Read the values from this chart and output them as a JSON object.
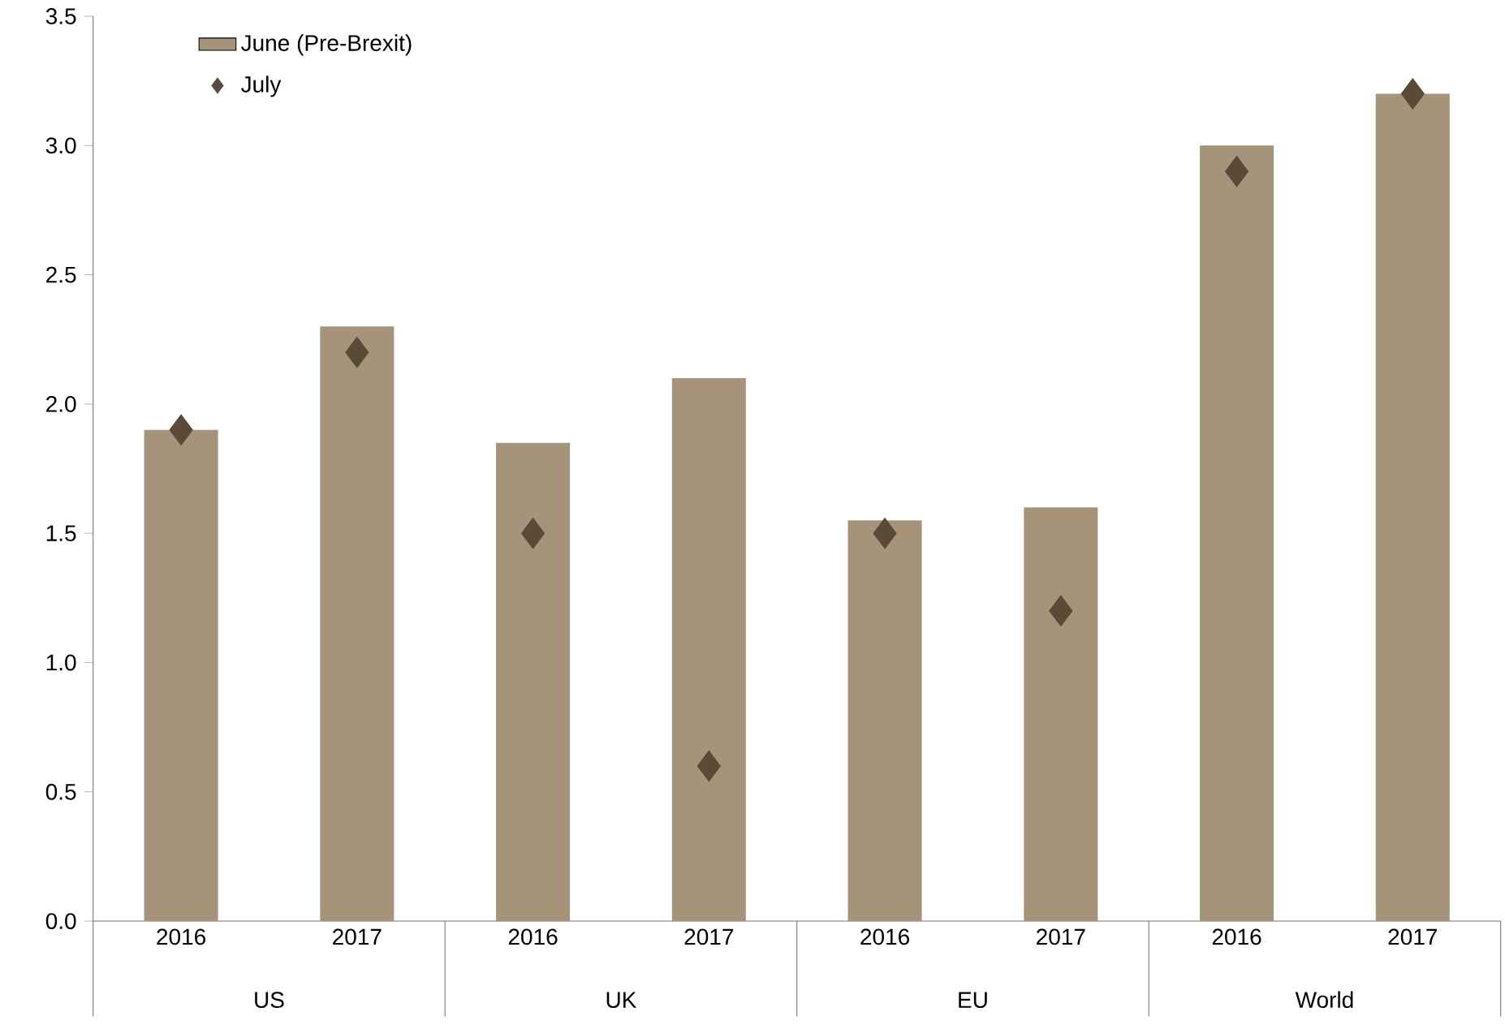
{
  "chart_data": {
    "type": "bar",
    "categories": [
      "2016",
      "2017",
      "2016",
      "2017",
      "2016",
      "2017",
      "2016",
      "2017"
    ],
    "series": [
      {
        "name": "June (Pre-Brexit)",
        "color": "#a59479",
        "values": [
          1.9,
          2.3,
          1.85,
          2.1,
          1.55,
          1.6,
          3.0,
          3.2
        ]
      },
      {
        "name": "July",
        "type": "scatter",
        "marker": "diamond",
        "color": "#5a4a38",
        "values": [
          1.9,
          2.2,
          1.5,
          0.6,
          1.5,
          1.2,
          2.9,
          3.2
        ]
      }
    ],
    "annotations": [
      "US",
      "UK",
      "EU",
      "World"
    ],
    "ylim": [
      0,
      3.5
    ],
    "yticks": [
      {
        "value": 0,
        "label": "0.0"
      },
      {
        "value": 0.5,
        "label": "0.5"
      },
      {
        "value": 1,
        "label": "1.0"
      },
      {
        "value": 1.5,
        "label": "1.5"
      },
      {
        "value": 2,
        "label": "2.0"
      },
      {
        "value": 2.5,
        "label": "2.5"
      },
      {
        "value": 3,
        "label": "3.0"
      },
      {
        "value": 3.5,
        "label": "3.5"
      }
    ],
    "legend": "top left",
    "grid": false
  }
}
